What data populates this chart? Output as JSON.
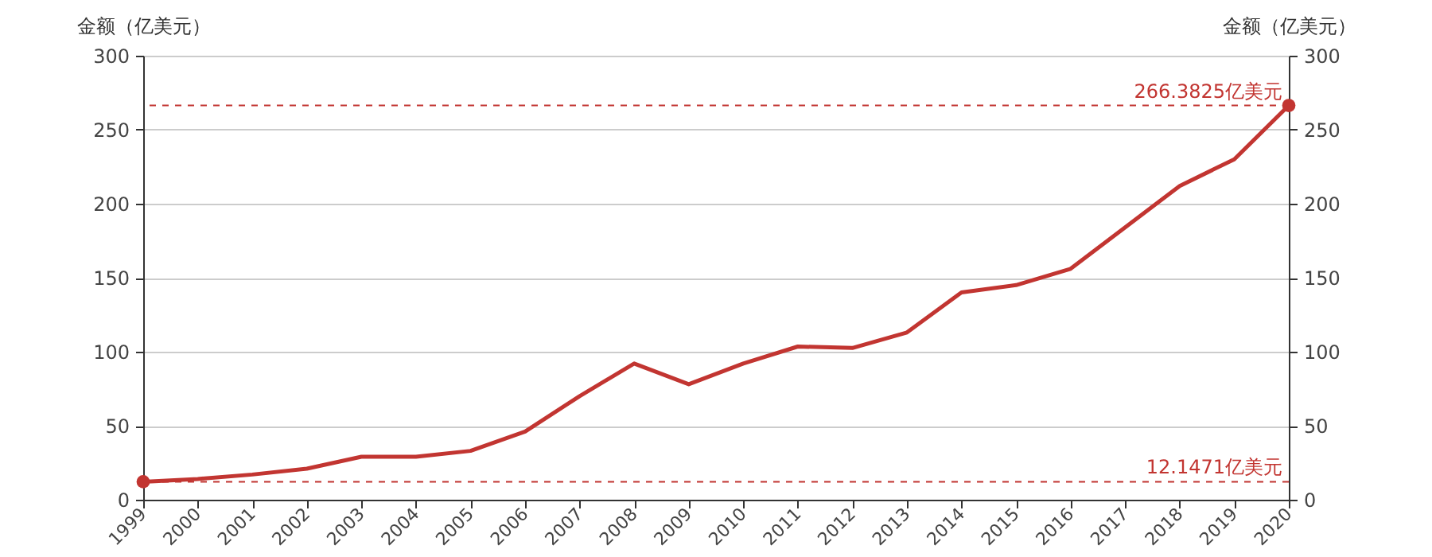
{
  "chart_data": {
    "type": "line",
    "categories": [
      "1999",
      "2000",
      "2001",
      "2002",
      "2003",
      "2004",
      "2005",
      "2006",
      "2007",
      "2008",
      "2009",
      "2010",
      "2011",
      "2012",
      "2013",
      "2014",
      "2015",
      "2016",
      "2017",
      "2018",
      "2019",
      "2020"
    ],
    "series": [
      {
        "color": "#c23531",
        "values": [
          12.1471,
          14,
          17,
          21,
          29,
          29,
          33,
          46,
          70,
          92,
          78,
          92,
          103.5,
          102.5,
          113,
          140,
          145,
          156,
          184,
          212,
          230,
          266.3825
        ]
      }
    ],
    "ylabel": "金额（亿美元）",
    "y2label": "金额（亿美元）",
    "ylim": [
      0,
      300
    ],
    "yticks": [
      0,
      50,
      100,
      150,
      200,
      250,
      300
    ],
    "y2lim": [
      0,
      300
    ],
    "y2ticks": [
      0,
      50,
      100,
      150,
      200,
      250,
      300
    ],
    "grid": "y",
    "ref_lines": [
      {
        "axis": "y",
        "value": 266.3825,
        "label": "266.3825亿美元",
        "color": "#c23531",
        "line_style": "dashed"
      },
      {
        "axis": "y",
        "value": 12.1471,
        "label": "12.1471亿美元",
        "color": "#c23531",
        "line_style": "dashed"
      }
    ]
  }
}
